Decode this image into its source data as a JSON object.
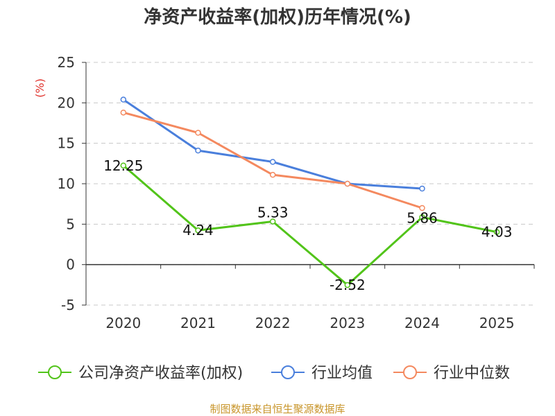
{
  "chart_data": {
    "type": "line",
    "title": "净资产收益率(加权)历年情况(%)",
    "ylabel": "(%)",
    "xlabel": "",
    "categories": [
      "2020",
      "2021",
      "2022",
      "2023",
      "2024",
      "2025"
    ],
    "yticks": [
      "25",
      "20",
      "15",
      "10",
      "5",
      "0",
      "-5"
    ],
    "ylim": [
      -5,
      25
    ],
    "grid": true,
    "legend_position": "bottom",
    "series": [
      {
        "name": "公司净资产收益率(加权)",
        "color": "#52c41a",
        "values": [
          12.25,
          4.24,
          5.33,
          -2.52,
          5.86,
          4.03
        ],
        "labels": [
          "12.25",
          "4.24",
          "5.33",
          "-2.52",
          "5.86",
          "4.03"
        ]
      },
      {
        "name": "行业均值",
        "color": "#4a7fdc",
        "values": [
          20.4,
          14.1,
          12.7,
          10.0,
          9.4,
          null
        ]
      },
      {
        "name": "行业中位数",
        "color": "#f4895f",
        "values": [
          18.8,
          16.3,
          11.1,
          10.0,
          7.0,
          null
        ]
      }
    ]
  },
  "source": "制图数据来自恒生聚源数据库"
}
